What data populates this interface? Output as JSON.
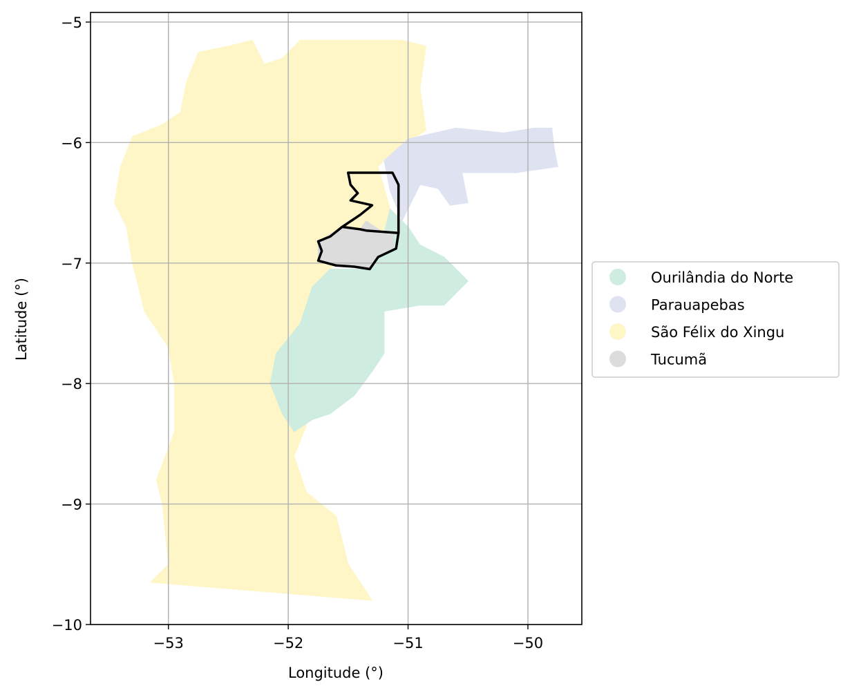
{
  "chart_data": {
    "type": "map",
    "xlabel": "Longitude (°)",
    "ylabel": "Latitude (°)",
    "xlim": [
      -53.65,
      -49.55
    ],
    "ylim": [
      -10,
      -4.92
    ],
    "x_ticks": [
      {
        "value": -53,
        "label": "−53"
      },
      {
        "value": -52,
        "label": "−52"
      },
      {
        "value": -51,
        "label": "−51"
      },
      {
        "value": -50,
        "label": "−50"
      }
    ],
    "y_ticks": [
      {
        "value": -5,
        "label": "−5"
      },
      {
        "value": -6,
        "label": "−6"
      },
      {
        "value": -7,
        "label": "−7"
      },
      {
        "value": -8,
        "label": "−8"
      },
      {
        "value": -9,
        "label": "−9"
      },
      {
        "value": -10,
        "label": "−10"
      }
    ],
    "grid": true,
    "legend_position": "right",
    "legend": [
      {
        "name": "Ourilândia do Norte",
        "color": "#cfece0"
      },
      {
        "name": "Parauapebas",
        "color": "#dfe3f1"
      },
      {
        "name": "São Félix do Xingu",
        "color": "#fff6c8"
      },
      {
        "name": "Tucumã",
        "color": "#dcdcdc"
      }
    ],
    "regions": [
      {
        "name": "São Félix do Xingu",
        "color": "#fff6c8",
        "coords": [
          [
            -51.9,
            -5.15
          ],
          [
            -51.05,
            -5.15
          ],
          [
            -50.85,
            -5.2
          ],
          [
            -50.9,
            -5.55
          ],
          [
            -50.85,
            -5.9
          ],
          [
            -51.1,
            -6.05
          ],
          [
            -51.25,
            -6.2
          ],
          [
            -51.15,
            -6.55
          ],
          [
            -51.15,
            -6.75
          ],
          [
            -51.5,
            -6.7
          ],
          [
            -51.6,
            -7.0
          ],
          [
            -51.75,
            -7.15
          ],
          [
            -51.85,
            -7.6
          ],
          [
            -51.9,
            -8.0
          ],
          [
            -51.85,
            -8.35
          ],
          [
            -51.95,
            -8.6
          ],
          [
            -51.85,
            -8.9
          ],
          [
            -51.6,
            -9.1
          ],
          [
            -51.5,
            -9.5
          ],
          [
            -51.3,
            -9.8
          ],
          [
            -53.15,
            -9.65
          ],
          [
            -53.0,
            -9.5
          ],
          [
            -53.05,
            -9.0
          ],
          [
            -53.1,
            -8.8
          ],
          [
            -52.95,
            -8.4
          ],
          [
            -52.95,
            -8.0
          ],
          [
            -53.0,
            -7.7
          ],
          [
            -53.2,
            -7.4
          ],
          [
            -53.3,
            -7.0
          ],
          [
            -53.35,
            -6.7
          ],
          [
            -53.45,
            -6.5
          ],
          [
            -53.4,
            -6.2
          ],
          [
            -53.3,
            -5.95
          ],
          [
            -53.05,
            -5.85
          ],
          [
            -52.9,
            -5.75
          ],
          [
            -52.85,
            -5.5
          ],
          [
            -52.75,
            -5.25
          ],
          [
            -52.5,
            -5.2
          ],
          [
            -52.3,
            -5.15
          ],
          [
            -52.2,
            -5.35
          ],
          [
            -52.05,
            -5.3
          ]
        ]
      },
      {
        "name": "Parauapebas",
        "color": "#dfe3f1",
        "coords": [
          [
            -51.2,
            -6.15
          ],
          [
            -51.0,
            -5.97
          ],
          [
            -50.6,
            -5.88
          ],
          [
            -50.2,
            -5.92
          ],
          [
            -49.95,
            -5.88
          ],
          [
            -49.8,
            -5.88
          ],
          [
            -49.78,
            -6.05
          ],
          [
            -49.75,
            -6.2
          ],
          [
            -50.1,
            -6.25
          ],
          [
            -50.55,
            -6.25
          ],
          [
            -50.5,
            -6.5
          ],
          [
            -50.65,
            -6.52
          ],
          [
            -50.75,
            -6.38
          ],
          [
            -50.9,
            -6.35
          ],
          [
            -51.05,
            -6.65
          ],
          [
            -51.15,
            -6.4
          ]
        ]
      },
      {
        "name": "Ourilândia do Norte",
        "color": "#cfece0",
        "coords": [
          [
            -51.15,
            -6.55
          ],
          [
            -51.0,
            -6.7
          ],
          [
            -50.9,
            -6.85
          ],
          [
            -50.7,
            -6.95
          ],
          [
            -50.5,
            -7.15
          ],
          [
            -50.7,
            -7.35
          ],
          [
            -50.9,
            -7.35
          ],
          [
            -51.2,
            -7.4
          ],
          [
            -51.2,
            -7.75
          ],
          [
            -51.3,
            -7.9
          ],
          [
            -51.45,
            -8.1
          ],
          [
            -51.65,
            -8.25
          ],
          [
            -51.8,
            -8.3
          ],
          [
            -51.95,
            -8.4
          ],
          [
            -52.05,
            -8.25
          ],
          [
            -52.15,
            -8.0
          ],
          [
            -52.1,
            -7.75
          ],
          [
            -51.9,
            -7.5
          ],
          [
            -51.8,
            -7.2
          ],
          [
            -51.65,
            -7.05
          ],
          [
            -51.35,
            -7.05
          ],
          [
            -51.15,
            -6.85
          ],
          [
            -51.2,
            -6.75
          ]
        ]
      },
      {
        "name": "Tucumã",
        "color": "#dcdcdc",
        "coords": [
          [
            -51.55,
            -6.7
          ],
          [
            -51.4,
            -6.72
          ],
          [
            -51.35,
            -6.65
          ],
          [
            -51.2,
            -6.75
          ],
          [
            -51.12,
            -6.75
          ],
          [
            -51.12,
            -6.88
          ],
          [
            -51.25,
            -6.95
          ],
          [
            -51.32,
            -7.05
          ],
          [
            -51.45,
            -7.03
          ],
          [
            -51.6,
            -7.02
          ],
          [
            -51.75,
            -6.98
          ],
          [
            -51.75,
            -6.82
          ]
        ]
      }
    ],
    "outline": {
      "color": "#000000",
      "coords": [
        [
          -51.5,
          -6.25
        ],
        [
          -51.13,
          -6.25
        ],
        [
          -51.08,
          -6.35
        ],
        [
          -51.08,
          -6.75
        ],
        [
          -51.1,
          -6.88
        ],
        [
          -51.25,
          -6.95
        ],
        [
          -51.32,
          -7.05
        ],
        [
          -51.45,
          -7.03
        ],
        [
          -51.6,
          -7.02
        ],
        [
          -51.75,
          -6.98
        ],
        [
          -51.72,
          -6.9
        ],
        [
          -51.75,
          -6.82
        ],
        [
          -51.65,
          -6.78
        ],
        [
          -51.55,
          -6.7
        ],
        [
          -51.4,
          -6.6
        ],
        [
          -51.3,
          -6.52
        ],
        [
          -51.48,
          -6.48
        ],
        [
          -51.42,
          -6.42
        ],
        [
          -51.48,
          -6.35
        ]
      ],
      "divider": [
        [
          -51.55,
          -6.7
        ],
        [
          -51.4,
          -6.72
        ],
        [
          -51.35,
          -6.73
        ],
        [
          -51.08,
          -6.75
        ]
      ]
    }
  }
}
